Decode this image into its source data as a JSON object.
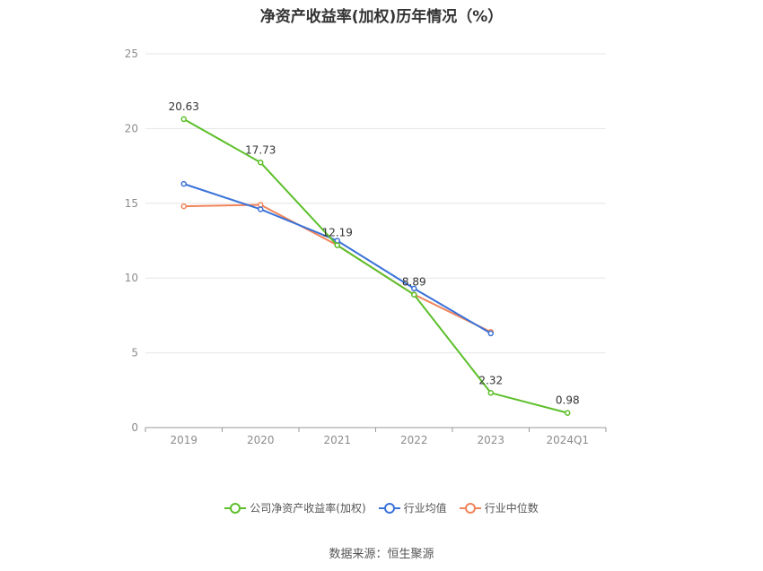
{
  "chart_data": {
    "type": "line",
    "title": "净资产收益率(加权)历年情况（%）",
    "categories": [
      "2019",
      "2020",
      "2021",
      "2022",
      "2023",
      "2024Q1"
    ],
    "ylim": [
      0,
      25
    ],
    "yticks": [
      0,
      5,
      10,
      15,
      20,
      25
    ],
    "grid": true,
    "legend_position": "bottom",
    "series": [
      {
        "name": "公司净资产收益率(加权)",
        "color": "#5cbf2a",
        "values": [
          20.63,
          17.73,
          12.19,
          8.89,
          2.32,
          0.98
        ],
        "labels": [
          "20.63",
          "17.73",
          "12.19",
          "8.89",
          "2.32",
          "0.98"
        ]
      },
      {
        "name": "行业均值",
        "color": "#3a72d8",
        "values": [
          16.3,
          14.6,
          12.5,
          9.3,
          6.3,
          null
        ]
      },
      {
        "name": "行业中位数",
        "color": "#f0845a",
        "values": [
          14.8,
          14.9,
          12.2,
          8.9,
          6.4,
          null
        ]
      }
    ]
  },
  "source": "数据来源：恒生聚源"
}
